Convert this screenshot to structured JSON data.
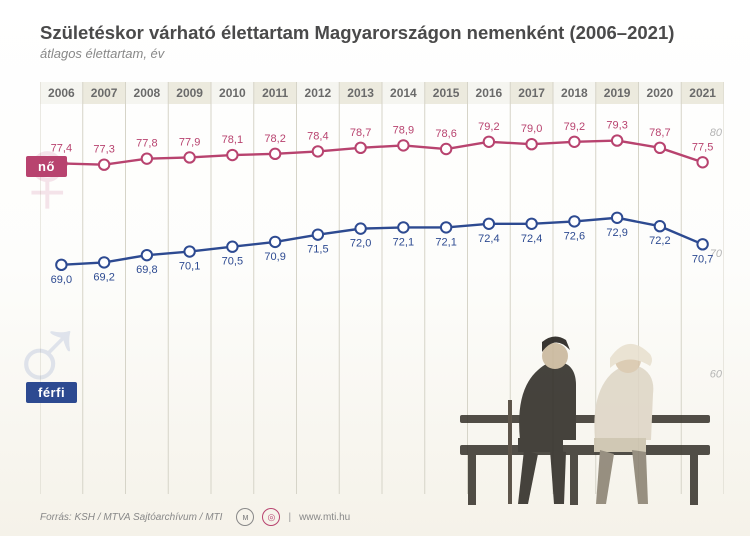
{
  "title": "Születéskor várható élettartam Magyarországon nemenként (2006–2021)",
  "subtitle": "átlagos élettartam, év",
  "years": [
    2006,
    2007,
    2008,
    2009,
    2010,
    2011,
    2012,
    2013,
    2014,
    2015,
    2016,
    2017,
    2018,
    2019,
    2020,
    2021
  ],
  "series": {
    "female": {
      "label": "nő",
      "color": "#b8436f",
      "line_width": 2.4,
      "marker_fill": "#ffffff",
      "marker_stroke": "#b8436f",
      "marker_radius": 5.2,
      "data": [
        77.4,
        77.3,
        77.8,
        77.9,
        78.1,
        78.2,
        78.4,
        78.7,
        78.9,
        78.6,
        79.2,
        79.0,
        79.2,
        79.3,
        78.7,
        77.5
      ],
      "value_label_dy": -12,
      "value_label_color": "#b8436f"
    },
    "male": {
      "label": "férfi",
      "color": "#2d4a91",
      "line_width": 2.4,
      "marker_fill": "#ffffff",
      "marker_stroke": "#2d4a91",
      "marker_radius": 5.2,
      "data": [
        69.0,
        69.2,
        69.8,
        70.1,
        70.5,
        70.9,
        71.5,
        72.0,
        72.1,
        72.1,
        72.4,
        72.4,
        72.6,
        72.9,
        72.2,
        70.7
      ],
      "value_label_dy": 18,
      "value_label_color": "#2d4a91"
    }
  },
  "y_axis": {
    "min": 50,
    "max": 82,
    "ticks": [
      60,
      70,
      80
    ],
    "tick_color": "#b5b5b5",
    "label_fontstyle": "italic"
  },
  "x_axis": {
    "year_band_colors": [
      "#f5f5f0",
      "#eceade"
    ],
    "year_label_color": "#6a6a6a",
    "year_label_fontsize": 12
  },
  "grid": {
    "vertical_color": "#d6d4c8",
    "vertical_width": 1
  },
  "plot": {
    "background_gradient_top": "#ffffff",
    "background_gradient_bottom": "#f5f2e9",
    "value_label_fontsize": 11
  },
  "footer": {
    "source": "Forrás: KSH / MTVA Sajtóarchívum / MTI",
    "site": "www.mti.hu"
  }
}
